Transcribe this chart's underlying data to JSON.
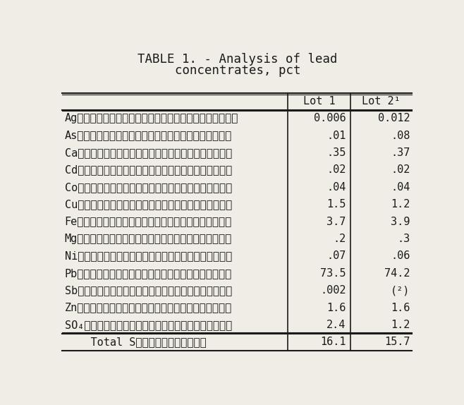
{
  "title_line1": "TABLE 1. - Analysis of lead",
  "title_line2": "concentrates, pct",
  "col_headers": [
    "",
    "Lot 1",
    "Lot 2¹"
  ],
  "rows": [
    [
      "Ag․․․․․․․․․․․․․․․․․․․․․․․․․",
      "0.006",
      "0.012"
    ],
    [
      "As․․․․․․․․․․․․․․․․․․․․․․․․",
      ".01",
      ".08"
    ],
    [
      "Ca․․․․․․․․․․․․․․․․․․․․․․․․",
      ".35",
      ".37"
    ],
    [
      "Cd․․․․․․․․․․․․․․․․․․․․․․․․",
      ".02",
      ".02"
    ],
    [
      "Co․․․․․․․․․․․․․․․․․․․․․․․․",
      ".04",
      ".04"
    ],
    [
      "Cu․․․․․․․․․․․․․․․․․․․․․․․․",
      "1.5",
      "1.2"
    ],
    [
      "Fe․․․․․․․․․․․․․․․․․․․․․․․․",
      "3.7",
      "3.9"
    ],
    [
      "Mg․․․․․․․․․․․․․․․․․․․․․․․․",
      ".2",
      ".3"
    ],
    [
      "Ni․․․․․․․․․․․․․․․․․․․․․․․․",
      ".07",
      ".06"
    ],
    [
      "Pb․․․․․․․․․․․․․․․․․․․․․․․․",
      "73.5",
      "74.2"
    ],
    [
      "Sb․․․․․․․․․․․․․․․․․․․․․․․․",
      ".002",
      "(²)"
    ],
    [
      "Zn․․․․․․․․․․․․․․․․․․․․․․․․",
      "1.6",
      "1.6"
    ],
    [
      "SO₄․․․․․․․․․․․․․․․․․․․․․․․",
      "2.4",
      "1.2"
    ]
  ],
  "total_label": "    Total S․․․․․․․․․․․",
  "total_lot1": "16.1",
  "total_lot2": "15.7",
  "bg_color": "#f0ede6",
  "text_color": "#1a1a1a",
  "title_fontsize": 12.5,
  "table_fontsize": 11.0,
  "font_family": "DejaVu Sans Mono"
}
